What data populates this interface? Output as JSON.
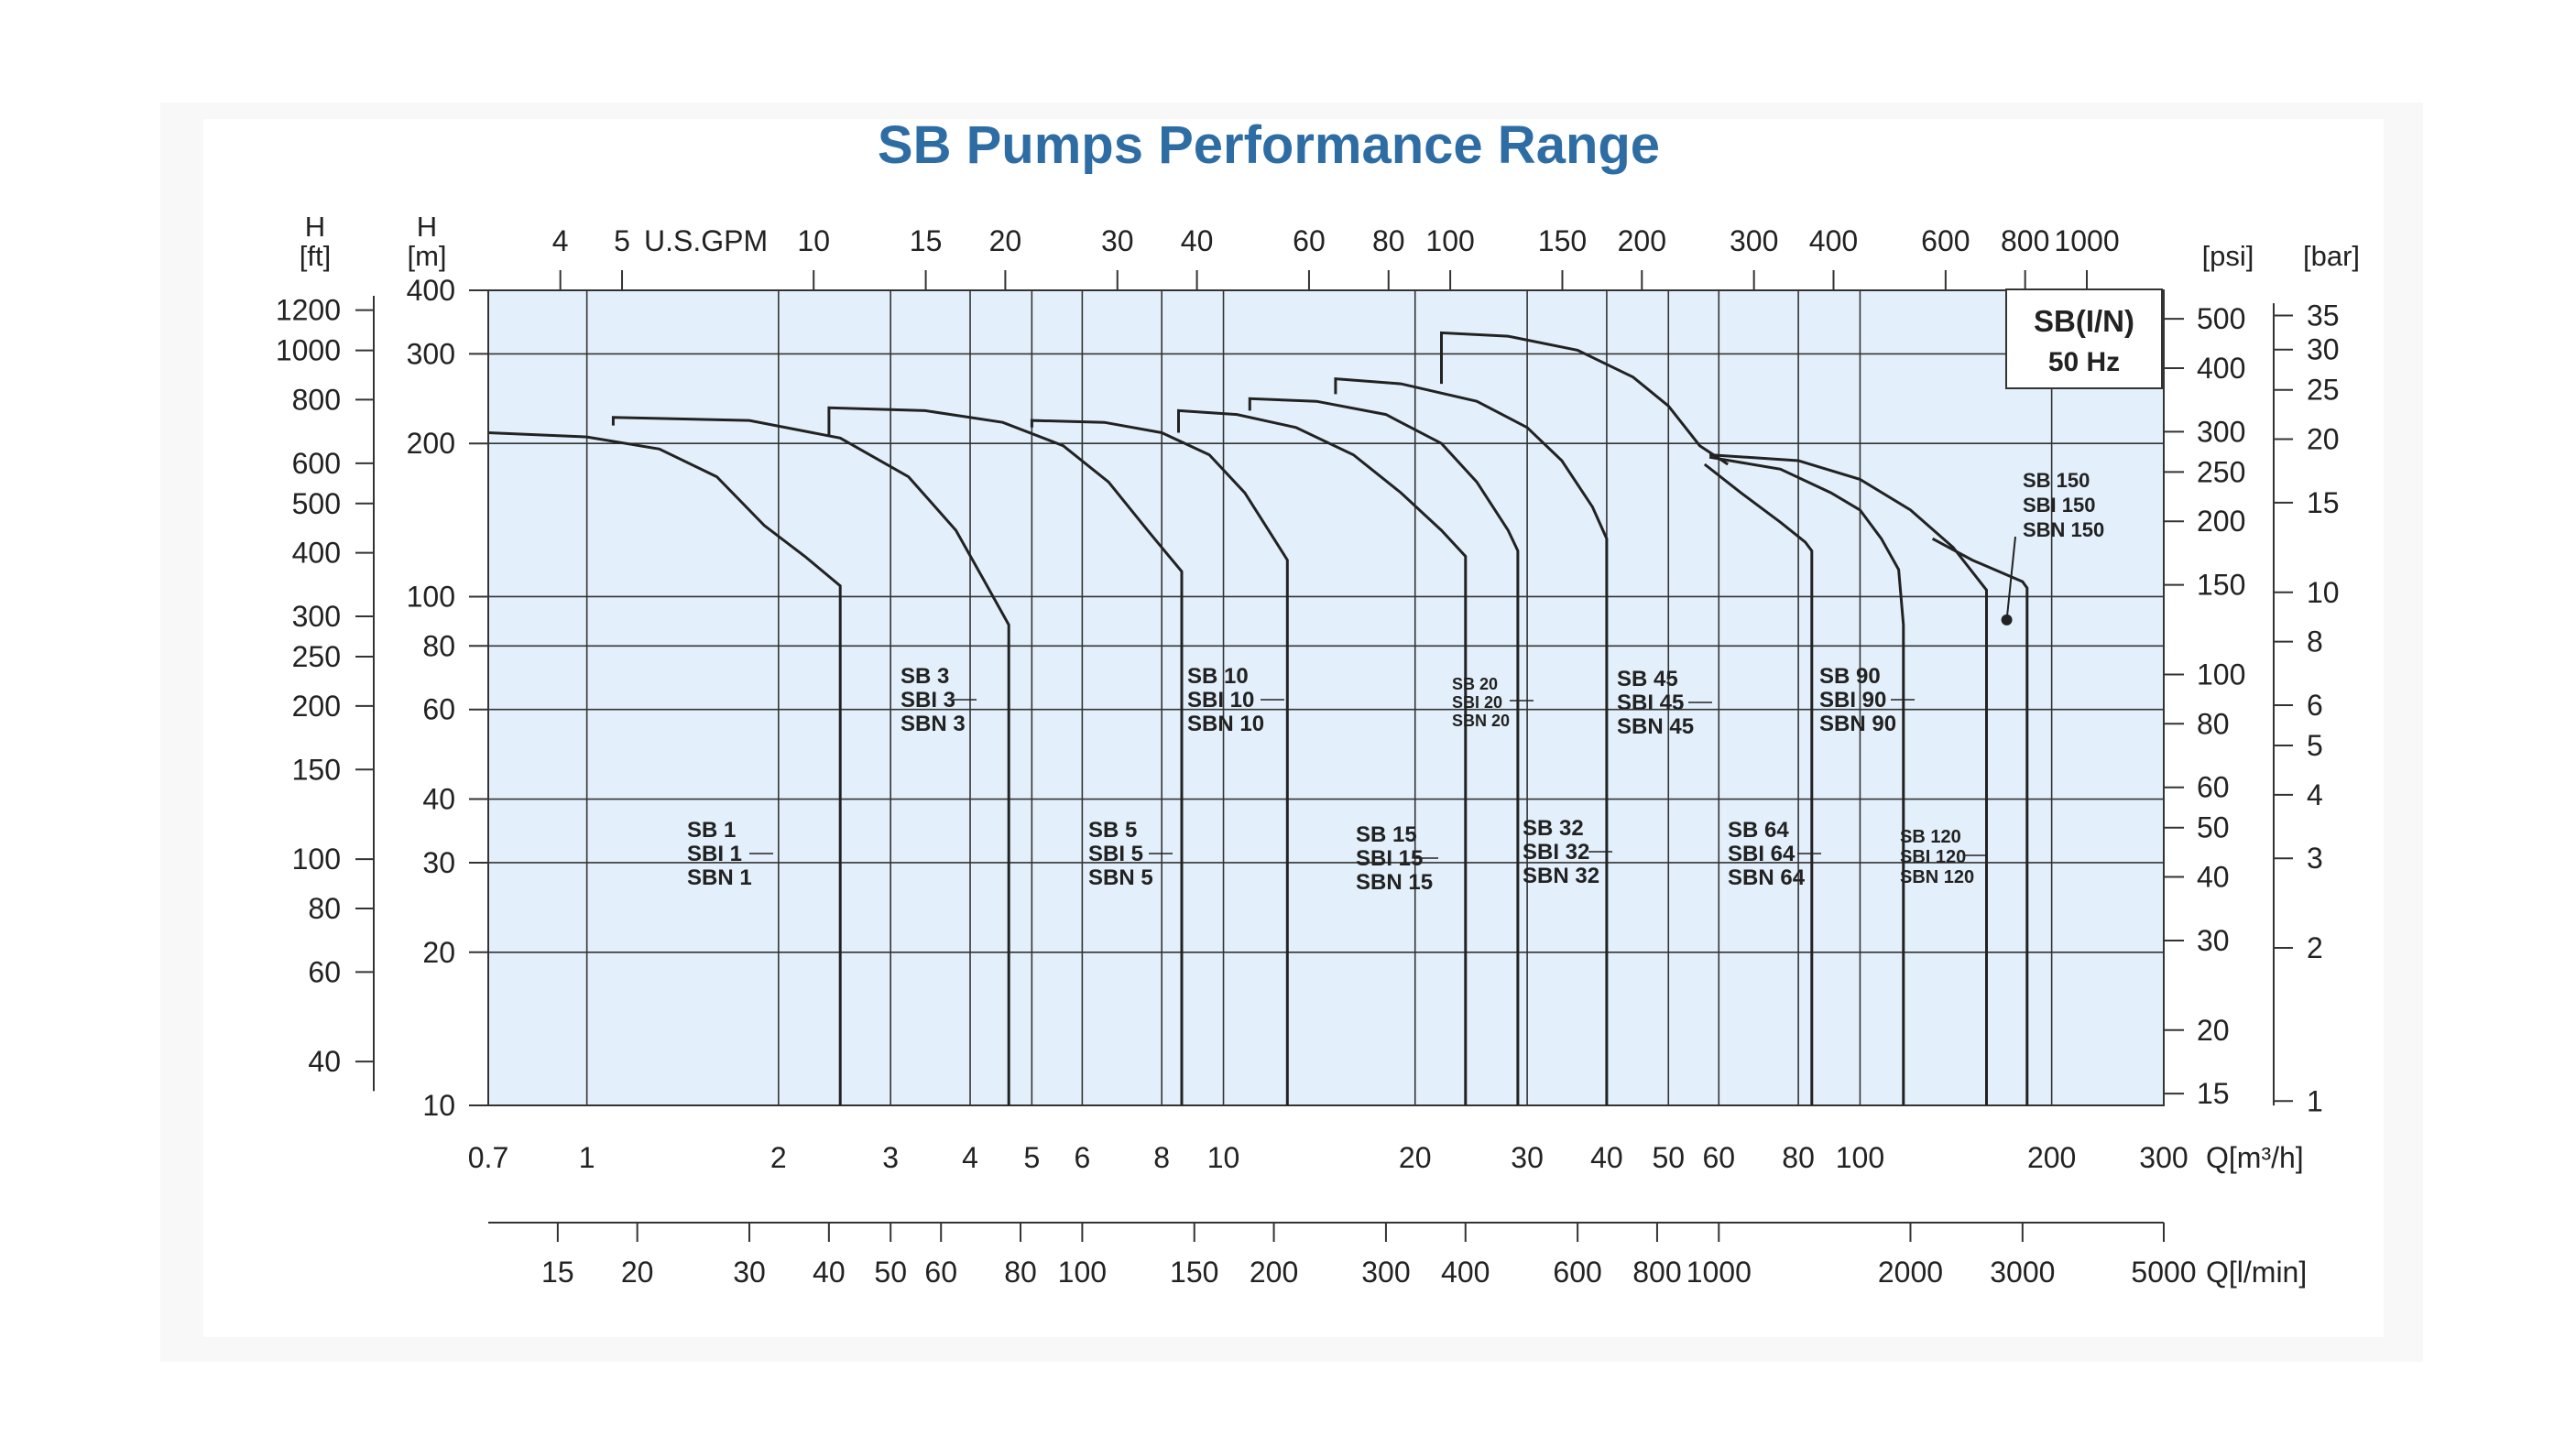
{
  "chart_data": {
    "type": "line",
    "title": "SB Pumps Performance Range",
    "badge": {
      "line1": "SB(I/N)",
      "line2": "50 Hz"
    },
    "scales": {
      "x_log": true,
      "y_log": true,
      "xlim": [
        0.7,
        300
      ],
      "ylim": [
        10,
        400
      ]
    },
    "axes": {
      "left_ft": {
        "label_line1": "H",
        "label_line2": "[ft]",
        "ticks": [
          {
            "label": "1200",
            "v": 1200
          },
          {
            "label": "1000",
            "v": 1000
          },
          {
            "label": "800",
            "v": 800
          },
          {
            "label": "600",
            "v": 600
          },
          {
            "label": "500",
            "v": 500
          },
          {
            "label": "400",
            "v": 400
          },
          {
            "label": "300",
            "v": 300
          },
          {
            "label": "250",
            "v": 250
          },
          {
            "label": "200",
            "v": 200
          },
          {
            "label": "150",
            "v": 150
          },
          {
            "label": "100",
            "v": 100
          },
          {
            "label": "80",
            "v": 80
          },
          {
            "label": "60",
            "v": 60
          },
          {
            "label": "40",
            "v": 40
          }
        ]
      },
      "left_m": {
        "label_line1": "H",
        "label_line2": "[m]",
        "ticks": [
          {
            "label": "400",
            "v": 400
          },
          {
            "label": "300",
            "v": 300
          },
          {
            "label": "200",
            "v": 200
          },
          {
            "label": "100",
            "v": 100
          },
          {
            "label": "80",
            "v": 80
          },
          {
            "label": "60",
            "v": 60
          },
          {
            "label": "40",
            "v": 40
          },
          {
            "label": "30",
            "v": 30
          },
          {
            "label": "20",
            "v": 20
          },
          {
            "label": "10",
            "v": 10
          }
        ]
      },
      "right_psi": {
        "label": "[psi]",
        "ticks": [
          {
            "label": "500",
            "v": 500
          },
          {
            "label": "400",
            "v": 400
          },
          {
            "label": "300",
            "v": 300
          },
          {
            "label": "250",
            "v": 250
          },
          {
            "label": "200",
            "v": 200
          },
          {
            "label": "150",
            "v": 150
          },
          {
            "label": "100",
            "v": 100
          },
          {
            "label": "80",
            "v": 80
          },
          {
            "label": "60",
            "v": 60
          },
          {
            "label": "50",
            "v": 50
          },
          {
            "label": "40",
            "v": 40
          },
          {
            "label": "30",
            "v": 30
          },
          {
            "label": "20",
            "v": 20
          },
          {
            "label": "15",
            "v": 15
          }
        ]
      },
      "right_bar": {
        "label": "[bar]",
        "ticks": [
          {
            "label": "35",
            "v": 35
          },
          {
            "label": "30",
            "v": 30
          },
          {
            "label": "25",
            "v": 25
          },
          {
            "label": "20",
            "v": 20
          },
          {
            "label": "15",
            "v": 15
          },
          {
            "label": "10",
            "v": 10
          },
          {
            "label": "8",
            "v": 8
          },
          {
            "label": "6",
            "v": 6
          },
          {
            "label": "5",
            "v": 5
          },
          {
            "label": "4",
            "v": 4
          },
          {
            "label": "3",
            "v": 3
          },
          {
            "label": "2",
            "v": 2
          },
          {
            "label": "1",
            "v": 1
          }
        ]
      },
      "top_gpm": {
        "unit_label": "U.S.GPM",
        "ticks": [
          {
            "label": "4",
            "v": 4
          },
          {
            "label": "5",
            "v": 5
          },
          {
            "label": "10",
            "v": 10
          },
          {
            "label": "15",
            "v": 15
          },
          {
            "label": "20",
            "v": 20
          },
          {
            "label": "30",
            "v": 30
          },
          {
            "label": "40",
            "v": 40
          },
          {
            "label": "60",
            "v": 60
          },
          {
            "label": "80",
            "v": 80
          },
          {
            "label": "100",
            "v": 100
          },
          {
            "label": "150",
            "v": 150
          },
          {
            "label": "200",
            "v": 200
          },
          {
            "label": "300",
            "v": 300
          },
          {
            "label": "400",
            "v": 400
          },
          {
            "label": "600",
            "v": 600
          },
          {
            "label": "800",
            "v": 800
          },
          {
            "label": "1000",
            "v": 1000
          }
        ]
      },
      "bottom_m3h": {
        "unit_label": "Q[m³/h]",
        "ticks": [
          {
            "label": "0.7",
            "v": 0.7
          },
          {
            "label": "1",
            "v": 1
          },
          {
            "label": "2",
            "v": 2
          },
          {
            "label": "3",
            "v": 3
          },
          {
            "label": "4",
            "v": 4
          },
          {
            "label": "5",
            "v": 5
          },
          {
            "label": "6",
            "v": 6
          },
          {
            "label": "8",
            "v": 8
          },
          {
            "label": "10",
            "v": 10
          },
          {
            "label": "20",
            "v": 20
          },
          {
            "label": "30",
            "v": 30
          },
          {
            "label": "40",
            "v": 40
          },
          {
            "label": "50",
            "v": 50
          },
          {
            "label": "60",
            "v": 60
          },
          {
            "label": "80",
            "v": 80
          },
          {
            "label": "100",
            "v": 100
          },
          {
            "label": "200",
            "v": 200
          },
          {
            "label": "300",
            "v": 300
          }
        ]
      },
      "bottom_lmin": {
        "unit_label": "Q[l/min]",
        "ticks": [
          {
            "label": "15",
            "v": 15
          },
          {
            "label": "20",
            "v": 20
          },
          {
            "label": "30",
            "v": 30
          },
          {
            "label": "40",
            "v": 40
          },
          {
            "label": "50",
            "v": 50
          },
          {
            "label": "60",
            "v": 60
          },
          {
            "label": "80",
            "v": 80
          },
          {
            "label": "100",
            "v": 100
          },
          {
            "label": "150",
            "v": 150
          },
          {
            "label": "200",
            "v": 200
          },
          {
            "label": "300",
            "v": 300
          },
          {
            "label": "400",
            "v": 400
          },
          {
            "label": "600",
            "v": 600
          },
          {
            "label": "800",
            "v": 800
          },
          {
            "label": "1000",
            "v": 1000
          },
          {
            "label": "2000",
            "v": 2000
          },
          {
            "label": "3000",
            "v": 3000
          },
          {
            "label": "5000",
            "v": 5000
          }
        ]
      }
    },
    "grid_x": [
      1,
      2,
      3,
      4,
      5,
      6,
      8,
      10,
      20,
      30,
      40,
      50,
      60,
      80,
      100,
      200
    ],
    "grid_y": [
      20,
      30,
      40,
      60,
      80,
      100,
      200,
      300
    ],
    "series": [
      {
        "labels": [
          "SB 1",
          "SBI 1",
          "SBN 1"
        ],
        "points": [
          [
            0.7,
            210
          ],
          [
            1.0,
            206
          ],
          [
            1.3,
            195
          ],
          [
            1.6,
            172
          ],
          [
            1.9,
            138
          ],
          [
            2.2,
            120
          ],
          [
            2.5,
            105
          ],
          [
            2.5,
            10
          ]
        ]
      },
      {
        "labels": [
          "SB 3",
          "SBI 3",
          "SBN 3"
        ],
        "points": [
          [
            1.1,
            217
          ],
          [
            1.1,
            225
          ],
          [
            1.8,
            222
          ],
          [
            2.5,
            205
          ],
          [
            3.2,
            172
          ],
          [
            3.8,
            135
          ],
          [
            4.2,
            108
          ],
          [
            4.6,
            88
          ],
          [
            4.6,
            10
          ]
        ]
      },
      {
        "labels": [
          "SB 5",
          "SBI 5",
          "SBN 5"
        ],
        "points": [
          [
            2.4,
            208
          ],
          [
            2.4,
            235
          ],
          [
            3.4,
            232
          ],
          [
            4.5,
            220
          ],
          [
            5.6,
            198
          ],
          [
            6.6,
            168
          ],
          [
            7.6,
            135
          ],
          [
            8.6,
            112
          ],
          [
            8.6,
            10
          ]
        ]
      },
      {
        "labels": [
          "SB 10",
          "SBI 10",
          "SBN 10"
        ],
        "points": [
          [
            5.0,
            215
          ],
          [
            5.0,
            222
          ],
          [
            6.5,
            220
          ],
          [
            8.0,
            210
          ],
          [
            9.5,
            190
          ],
          [
            10.8,
            160
          ],
          [
            12.0,
            130
          ],
          [
            12.6,
            118
          ],
          [
            12.6,
            10
          ]
        ]
      },
      {
        "labels": [
          "SB 15",
          "SBI 15",
          "SBN 15"
        ],
        "points": [
          [
            8.5,
            210
          ],
          [
            8.5,
            232
          ],
          [
            10.5,
            228
          ],
          [
            13,
            215
          ],
          [
            16,
            190
          ],
          [
            19,
            160
          ],
          [
            22,
            135
          ],
          [
            24,
            120
          ],
          [
            24,
            10
          ]
        ]
      },
      {
        "labels": [
          "SB 20",
          "SBI 20",
          "SBN 20"
        ],
        "points": [
          [
            11,
            232
          ],
          [
            11,
            245
          ],
          [
            14,
            242
          ],
          [
            18,
            228
          ],
          [
            22,
            200
          ],
          [
            25,
            168
          ],
          [
            28,
            135
          ],
          [
            29,
            123
          ],
          [
            29,
            10
          ]
        ]
      },
      {
        "labels": [
          "SB 32",
          "SBI 32",
          "SBN 32"
        ],
        "points": [
          [
            15,
            250
          ],
          [
            15,
            268
          ],
          [
            19,
            262
          ],
          [
            25,
            242
          ],
          [
            30,
            215
          ],
          [
            34,
            185
          ],
          [
            38,
            150
          ],
          [
            40,
            130
          ],
          [
            40,
            10
          ]
        ]
      },
      {
        "labels": [
          "SB 45",
          "SBI 45",
          "SBN 45"
        ],
        "points": [
          [
            22,
            262
          ],
          [
            22,
            330
          ],
          [
            28,
            325
          ],
          [
            36,
            305
          ],
          [
            44,
            270
          ],
          [
            50,
            237
          ],
          [
            56,
            198
          ],
          [
            62,
            182
          ]
        ]
      },
      {
        "labels": [
          "SB 64",
          "SBI 64",
          "SBN 64"
        ],
        "points": [
          [
            57,
            182
          ],
          [
            65,
            160
          ],
          [
            75,
            140
          ],
          [
            82,
            128
          ],
          [
            84,
            123
          ],
          [
            84,
            10
          ]
        ]
      },
      {
        "labels": [
          "SB 90",
          "SBI 90",
          "SBN 90"
        ],
        "points": [
          [
            58,
            188
          ],
          [
            75,
            178
          ],
          [
            90,
            160
          ],
          [
            100,
            148
          ],
          [
            108,
            130
          ],
          [
            115,
            113
          ],
          [
            117,
            88
          ],
          [
            117,
            10
          ]
        ]
      },
      {
        "labels": [
          "SB 120",
          "SBI 120",
          "SBN 120"
        ],
        "points": [
          [
            58,
            190
          ],
          [
            80,
            185
          ],
          [
            100,
            170
          ],
          [
            120,
            148
          ],
          [
            140,
            125
          ],
          [
            158,
            103
          ],
          [
            158,
            10
          ]
        ]
      },
      {
        "labels": [
          "SB 150",
          "SBI 150",
          "SBN 150"
        ],
        "points": [
          [
            130,
            130
          ],
          [
            150,
            118
          ],
          [
            180,
            107
          ],
          [
            183,
            104
          ],
          [
            183,
            10
          ]
        ]
      }
    ],
    "annotations": [
      {
        "series": "SB 150",
        "marker": [
          170,
          90
        ]
      }
    ]
  }
}
